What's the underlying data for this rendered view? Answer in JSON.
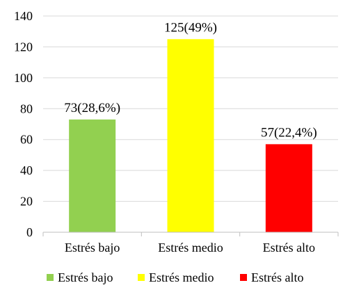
{
  "chart_data": {
    "type": "bar",
    "categories": [
      "Estrés bajo",
      "Estrés medio",
      "Estrés alto"
    ],
    "values": [
      73,
      125,
      57
    ],
    "data_labels": [
      "73(28,6%)",
      "125(49%)",
      "57(22,4%)"
    ],
    "colors": [
      "#92d050",
      "#ffff00",
      "#ff0000"
    ],
    "ylim": [
      0,
      140
    ],
    "yticks": [
      0,
      20,
      40,
      60,
      80,
      100,
      120,
      140
    ],
    "grid": true,
    "legend": {
      "placement": "bottom",
      "entries": [
        "Estrés bajo",
        "Estrés medio",
        "Estrés alto"
      ]
    }
  }
}
